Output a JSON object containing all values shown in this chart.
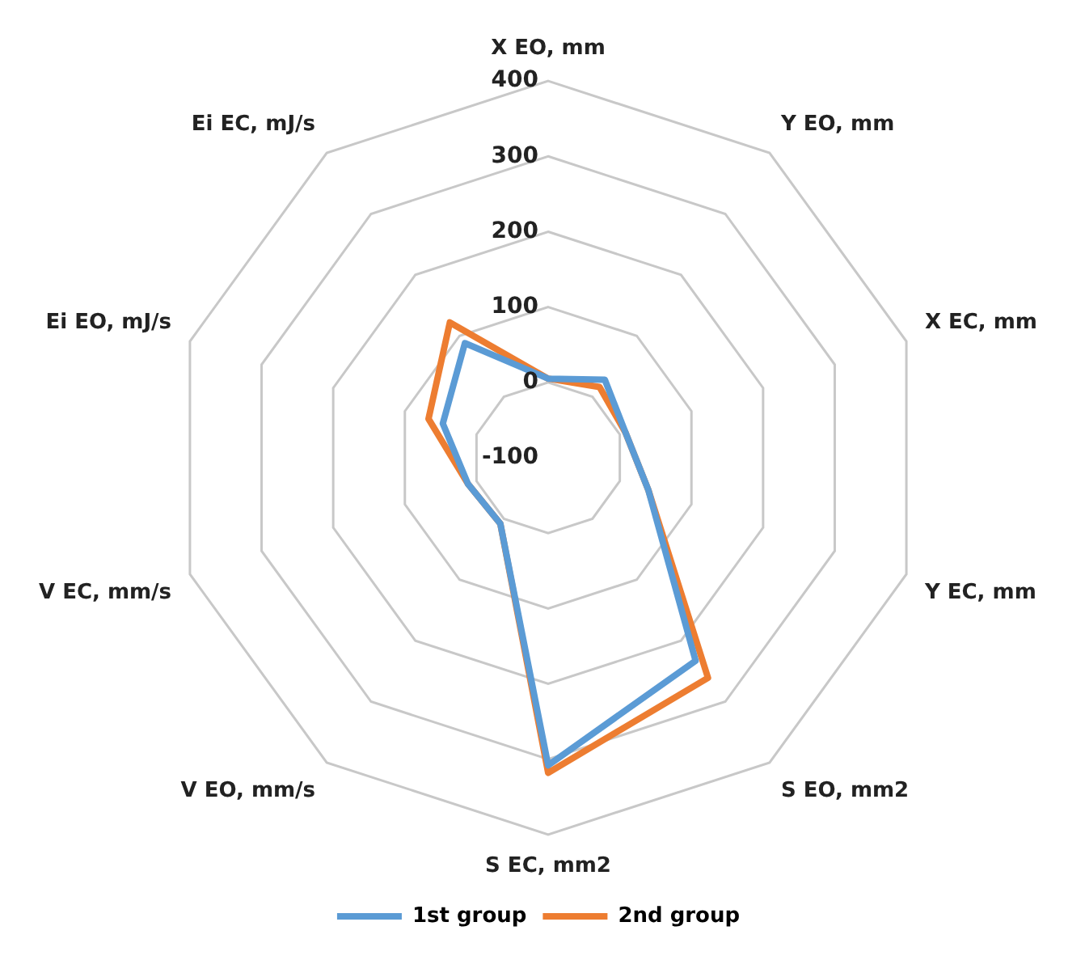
{
  "chart_data": {
    "type": "radar",
    "categories": [
      "X EO, mm",
      "Y EO, mm",
      "X EC, mm",
      "Y EC, mm",
      "S EO, mm2",
      "S EC, mm2",
      "V EO, mm/s",
      "V EC, mm/s",
      "Ei EO, mJ/s",
      "Ei EC, mJ/s"
    ],
    "series": [
      {
        "name": "1st group",
        "color": "#5b9bd5",
        "values": [
          5,
          28,
          8,
          40,
          233,
          308,
          8,
          12,
          47,
          88
        ]
      },
      {
        "name": "2nd group",
        "color": "#ed7d31",
        "values": [
          5,
          16,
          8,
          40,
          261,
          318,
          8,
          12,
          67,
          122
        ]
      }
    ],
    "ylim": [
      -100,
      400
    ],
    "yticks": [
      -100,
      0,
      100,
      200,
      300,
      400
    ],
    "grid": true,
    "legend": "bottom",
    "marker": "none",
    "line_style": "solid"
  }
}
